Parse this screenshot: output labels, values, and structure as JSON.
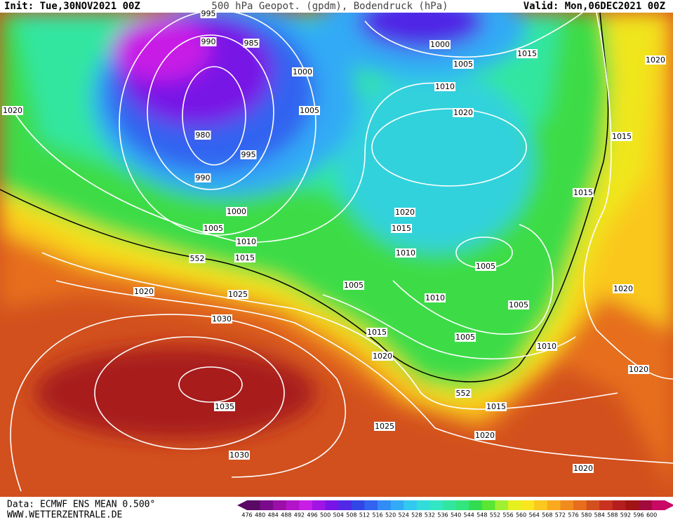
{
  "header": {
    "init": "Init: Tue,30NOV2021 00Z",
    "title": "500 hPa Geopot. (gpdm), Bodendruck (hPa)",
    "valid": "Valid: Mon,06DEC2021 00Z"
  },
  "footer": {
    "source": "Data: ECMWF ENS MEAN 0.500°",
    "site": "WWW.WETTERZENTRALE.DE"
  },
  "isobar_labels": [
    "995",
    "990",
    "985",
    "1000",
    "1015",
    "1020",
    "1000",
    "1005",
    "1010",
    "1020",
    "1005",
    "1020",
    "980",
    "1015",
    "995",
    "990",
    "1015",
    "1000",
    "1020",
    "1005",
    "1015",
    "1010",
    "1010",
    "552",
    "1015",
    "1005",
    "1005",
    "1020",
    "1025",
    "1020",
    "1010",
    "1005",
    "1030",
    "1015",
    "1005",
    "1010",
    "1020",
    "1020",
    "552",
    "1035",
    "1015",
    "1025",
    "1020",
    "1030",
    "1020"
  ],
  "scale": {
    "values": [
      476,
      480,
      484,
      488,
      492,
      496,
      500,
      504,
      508,
      512,
      516,
      520,
      524,
      528,
      532,
      536,
      540,
      544,
      548,
      552,
      556,
      560,
      564,
      568,
      572,
      576,
      580,
      584,
      588,
      592,
      596,
      600
    ],
    "colors": [
      "#5a0a64",
      "#7a0a8c",
      "#9b0fa8",
      "#b414c8",
      "#c81ee6",
      "#a014e6",
      "#7814e6",
      "#5028e6",
      "#3246e6",
      "#3264f0",
      "#328cf5",
      "#32aaf5",
      "#32c8f0",
      "#32dcdc",
      "#32e6c3",
      "#32e6a0",
      "#32e67d",
      "#32dc50",
      "#5ae632",
      "#a0f032",
      "#e6f01e",
      "#fae61e",
      "#fac81e",
      "#faaa1e",
      "#f08c1e",
      "#e66e1e",
      "#d2501e",
      "#c8321e",
      "#b41e1e",
      "#a01414",
      "#a00a3c",
      "#c80a64"
    ]
  }
}
